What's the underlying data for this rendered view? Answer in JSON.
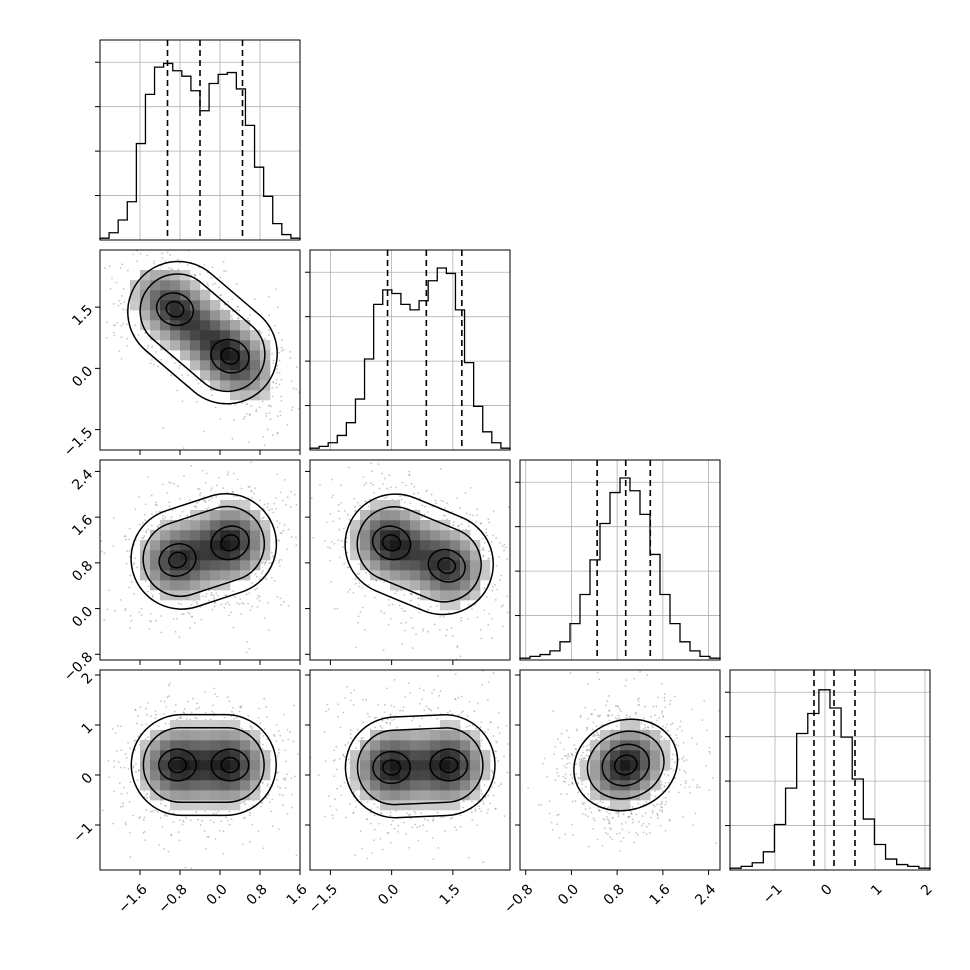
{
  "chart_data": {
    "type": "corner",
    "title": "",
    "dimensions": 4,
    "ranges": [
      [
        -2.4,
        1.6
      ],
      [
        -2.0,
        2.9
      ],
      [
        -0.9,
        2.6
      ],
      [
        -1.9,
        2.1
      ]
    ],
    "ticks": [
      {
        "values": [
          -1.6,
          -0.8,
          0.0,
          0.8,
          1.6
        ],
        "labels": [
          "−1.6",
          "−0.8",
          "0.0",
          "0.8",
          "1.6"
        ]
      },
      {
        "values": [
          -1.5,
          0.0,
          1.5
        ],
        "labels": [
          "−1.5",
          "0.0",
          "1.5"
        ]
      },
      {
        "values": [
          -0.8,
          0.0,
          0.8,
          1.6,
          2.4
        ],
        "labels": [
          "−0.8",
          "0.0",
          "0.8",
          "1.6",
          "2.4"
        ]
      },
      {
        "values": [
          -1,
          0,
          1,
          2
        ],
        "labels": [
          "−1",
          "0",
          "1",
          "2"
        ]
      }
    ],
    "quantiles": [
      [
        -1.05,
        -0.4,
        0.45
      ],
      [
        -0.1,
        0.85,
        1.72
      ],
      [
        0.45,
        0.95,
        1.38
      ],
      [
        -0.22,
        0.18,
        0.6
      ]
    ],
    "histograms": [
      [
        0.01,
        0.04,
        0.11,
        0.21,
        0.53,
        0.8,
        0.95,
        0.97,
        0.93,
        0.9,
        0.82,
        0.71,
        0.86,
        0.91,
        0.92,
        0.83,
        0.63,
        0.4,
        0.24,
        0.09,
        0.03,
        0.01
      ],
      [
        0.01,
        0.02,
        0.04,
        0.08,
        0.15,
        0.28,
        0.5,
        0.8,
        0.88,
        0.86,
        0.8,
        0.77,
        0.82,
        0.93,
        1.0,
        0.97,
        0.77,
        0.48,
        0.24,
        0.1,
        0.04,
        0.01
      ],
      [
        0.01,
        0.02,
        0.03,
        0.05,
        0.1,
        0.2,
        0.36,
        0.55,
        0.75,
        0.92,
        1.0,
        0.93,
        0.8,
        0.58,
        0.36,
        0.2,
        0.1,
        0.05,
        0.02,
        0.01
      ],
      [
        0.01,
        0.02,
        0.04,
        0.1,
        0.25,
        0.45,
        0.75,
        0.86,
        0.99,
        0.89,
        0.73,
        0.5,
        0.28,
        0.14,
        0.06,
        0.03,
        0.02,
        0.01
      ]
    ],
    "pairs": [
      {
        "row": 1,
        "col": 0,
        "modes": [
          [
            -0.9,
            1.45,
            0.5
          ],
          [
            0.2,
            0.3,
            0.55
          ]
        ],
        "correlation": -0.8
      },
      {
        "row": 2,
        "col": 0,
        "modes": [
          [
            -0.85,
            0.85,
            0.5
          ],
          [
            0.2,
            1.15,
            0.55
          ]
        ],
        "correlation": 0.1
      },
      {
        "row": 2,
        "col": 1,
        "modes": [
          [
            0.0,
            1.15,
            0.55
          ],
          [
            1.35,
            0.75,
            0.5
          ]
        ],
        "correlation": -0.3
      },
      {
        "row": 3,
        "col": 0,
        "modes": [
          [
            -0.85,
            0.2,
            0.5
          ],
          [
            0.2,
            0.2,
            0.5
          ]
        ],
        "correlation": 0.0
      },
      {
        "row": 3,
        "col": 1,
        "modes": [
          [
            0.0,
            0.15,
            0.5
          ],
          [
            1.4,
            0.2,
            0.5
          ]
        ],
        "correlation": 0.0
      },
      {
        "row": 3,
        "col": 2,
        "modes": [
          [
            0.95,
            0.2,
            1.0
          ]
        ],
        "correlation": 0.35
      }
    ],
    "grid": true,
    "colors": {
      "line": "#000000",
      "grid": "#b0b0b0",
      "points": "#808080",
      "density": "#000000"
    }
  }
}
